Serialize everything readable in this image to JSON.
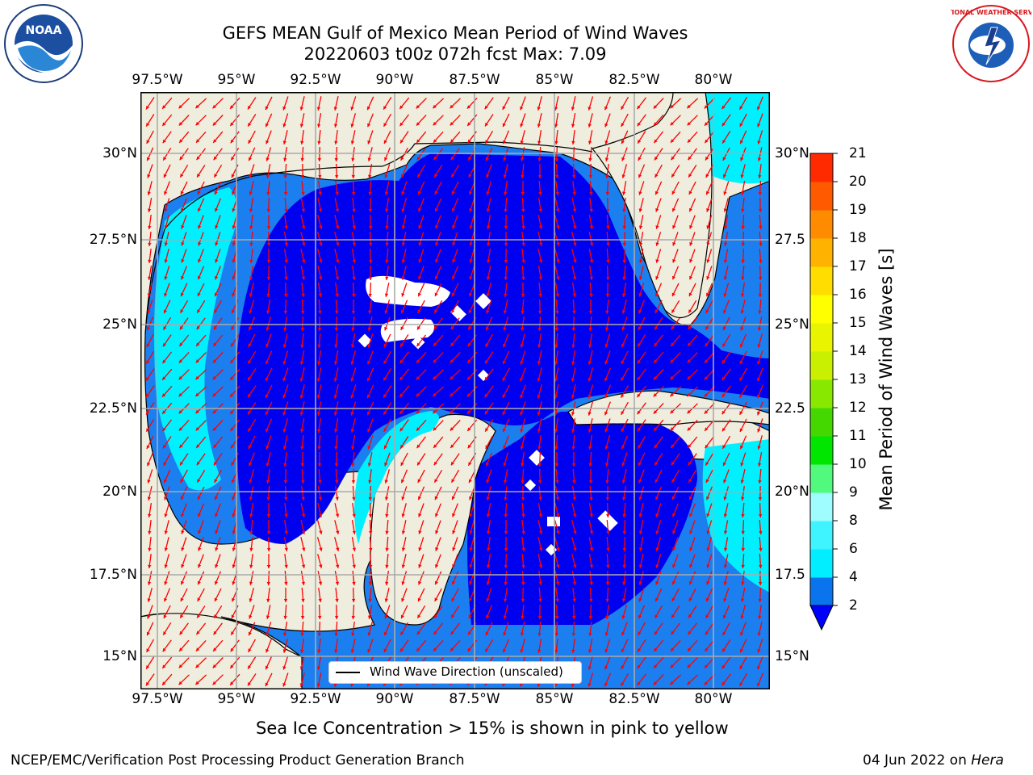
{
  "header": {
    "title_line1": "GEFS MEAN Gulf of Mexico Mean Period of Wind Waves",
    "title_line2": "20220603 t00z 072h fcst   Max: 7.09"
  },
  "logos": {
    "left": {
      "name": "NOAA",
      "ring_text": "NATIONAL OCEANIC AND ATMOSPHERIC ADMINISTRATION · U.S. DEPARTMENT OF COMMERCE"
    },
    "right": {
      "name": "NATIONAL WEATHER SERVICE"
    }
  },
  "map": {
    "lon_ticks": [
      "97.5°W",
      "95°W",
      "92.5°W",
      "90°W",
      "87.5°W",
      "85°W",
      "82.5°W",
      "80°W"
    ],
    "lat_ticks_left": [
      "30°N",
      "27.5°N",
      "25°N",
      "22.5°N",
      "20°N",
      "17.5°N",
      "15°N"
    ],
    "lat_ticks_right": [
      "30°N",
      "27.5",
      "25°N",
      "22.5",
      "20°N",
      "17.5",
      "15°N"
    ],
    "land_color": "#efedde",
    "arrow_color": "#ff0000",
    "legend_label": "Wind Wave Direction (unscaled)"
  },
  "colorbar": {
    "title": "Mean Period of Wind Waves [s]",
    "labels": [
      "2",
      "4",
      "6",
      "8",
      "9",
      "10",
      "11",
      "12",
      "13",
      "14",
      "15",
      "16",
      "17",
      "18",
      "19",
      "20",
      "21"
    ],
    "colors": [
      "#0a74ee",
      "#00eeff",
      "#3ff4ff",
      "#9ffcff",
      "#51fa7c",
      "#00e600",
      "#44d800",
      "#88e800",
      "#c8f000",
      "#e8f400",
      "#ffff00",
      "#ffdd00",
      "#ffb300",
      "#ff8c00",
      "#ff5a00",
      "#ff2a00"
    ],
    "under_color": "#0000ff"
  },
  "caption": "Sea Ice Concentration > 15% is shown in pink to yellow",
  "footer": {
    "left": "NCEP/EMC/Verification Post Processing Product Generation Branch",
    "right_prefix": "04 Jun 2022 on ",
    "right_host": "Hera"
  }
}
